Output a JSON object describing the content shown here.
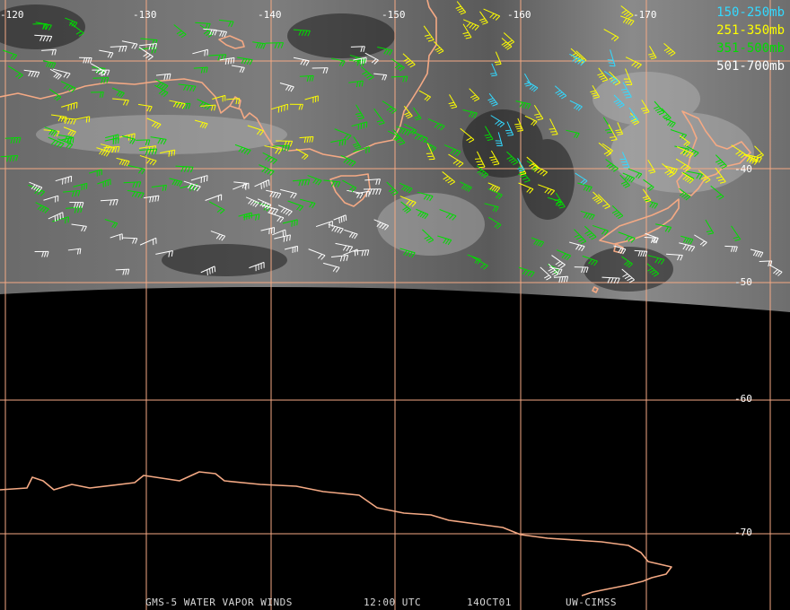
{
  "legend": [
    {
      "label": "150-250mb",
      "color": "#33d9ff"
    },
    {
      "label": "251-350mb",
      "color": "#ffff00"
    },
    {
      "label": "351-500mb",
      "color": "#00dd00"
    },
    {
      "label": "501-700mb",
      "color": "#ffffff"
    }
  ],
  "longitude_labels": [
    "-120",
    "-130",
    "-140",
    "-150",
    "-160",
    "-170"
  ],
  "latitude_labels": [
    "-40",
    "-50",
    "-60",
    "-70"
  ],
  "footer": {
    "product": "GMS-5 WATER VAPOR WINDS",
    "time": "12:00 UTC",
    "date": "14OCT01",
    "source": "UW-CIMSS"
  },
  "colors": {
    "grid": "#f4a984",
    "coast": "#f4a984",
    "background": "#000000"
  }
}
